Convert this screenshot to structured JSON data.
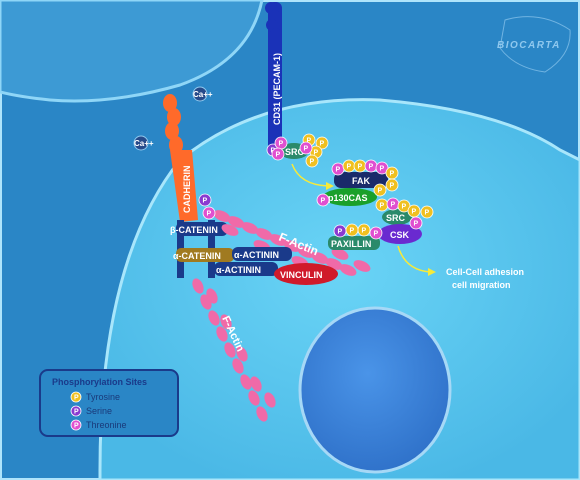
{
  "logo": {
    "text": "BIOCARTA"
  },
  "ions": {
    "calcium_1": "Ca++",
    "calcium_2": "Ca++"
  },
  "receptors": {
    "cd31": "CD31 (PECAM-1)",
    "cadherin": "CADHERIN"
  },
  "proteins": {
    "beta_catenin": "β-CATENIN",
    "alpha_catenin": "α-CATENIN",
    "alpha_actinin_1": "α-ACTININ",
    "alpha_actinin_2": "α-ACTININ",
    "vinculin": "VINCULIN",
    "f_actin_1": "F-Actin",
    "f_actin_2": "F-Actin",
    "src_1": "SRC",
    "src_2": "SRC",
    "fak": "FAK",
    "p130cas": "p130CAS",
    "paxillin": "PAXILLIN",
    "csk": "CSK"
  },
  "phospho_label": "P",
  "outcome": {
    "line1": "Cell-Cell adhesion",
    "line2": "cell migration"
  },
  "legend": {
    "title": "Phosphorylation Sites",
    "items": [
      {
        "label": "Tyrosine",
        "color": "#f0c020"
      },
      {
        "label": "Serine",
        "color": "#8a3ad0"
      },
      {
        "label": "Threonine",
        "color": "#e050d0"
      }
    ]
  },
  "colors": {
    "background": "#2a86c6",
    "cell_body": "#5ac8f0",
    "nucleus": "#3a84d8",
    "receptor": "#1a32b8",
    "cadherin": "#ff6a2a",
    "actin": "#f06aa8",
    "catenin_bar": "#1a3a8a",
    "alpha_catenin": "#a07a20",
    "vinculin": "#d01a2a",
    "src": "#2a8a6a",
    "fak": "#1a2a6a",
    "p130cas": "#1aa02a",
    "csk": "#6a2ad0",
    "paxillin": "#2a8a6a"
  }
}
